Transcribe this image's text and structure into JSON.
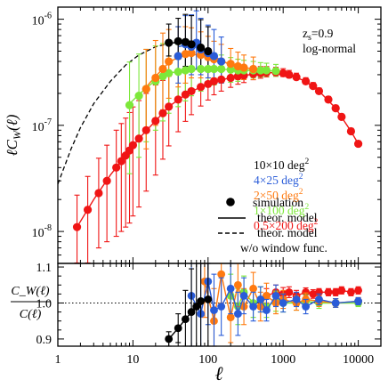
{
  "chart_data": {
    "type": "scatter",
    "x_scale": "log",
    "xlim": [
      1,
      20000
    ],
    "x_ticks": [
      1,
      10,
      100,
      1000,
      10000
    ],
    "x_tick_labels": [
      "1",
      "10",
      "100",
      "1000",
      "10000"
    ],
    "xlabel": "ℓ",
    "legend_placement": "lower-right",
    "annotation_lines": [
      "z",
      "s",
      "=0.9",
      "log-normal"
    ],
    "panels": [
      {
        "id": "top",
        "y_scale": "log",
        "ylim": [
          5e-09,
          1.3e-06
        ],
        "ylabel_parts": [
          "ℓ",
          "C",
          "W",
          "(ℓ)"
        ],
        "y_ticks": [
          {
            "value": 1e-08,
            "mantissa": "10",
            "exponent": "-8"
          },
          {
            "value": 1e-07,
            "mantissa": "10",
            "exponent": "-7"
          },
          {
            "value": 1e-06,
            "mantissa": "10",
            "exponent": "-6"
          }
        ],
        "series": [
          {
            "name": "10×10 deg",
            "name_sup": "2",
            "color": "#000000",
            "x": [
              30,
              40,
              50,
              60,
              80,
              100
            ],
            "y": [
              6e-07,
              6.2e-07,
              6.1e-07,
              5.8e-07,
              5.4e-07,
              5e-07
            ],
            "yerr_lo": [
              1.5e-07,
              2e-07,
              2.5e-07,
              2.3e-07,
              2e-07,
              1.8e-07
            ],
            "yerr_hi": [
              3e-07,
              4e-07,
              5e-07,
              5e-07,
              4.5e-07,
              3.5e-07
            ]
          },
          {
            "name": "4×25 deg",
            "name_sup": "2",
            "color": "#2a5cd8",
            "x": [
              40,
              50,
              60,
              70,
              80,
              100,
              120,
              150
            ],
            "y": [
              4.5e-07,
              5.8e-07,
              5.5e-07,
              6e-07,
              5.2e-07,
              4.8e-07,
              4.5e-07,
              4e-07
            ],
            "yerr_lo": [
              2e-07,
              2.5e-07,
              2.5e-07,
              2.6e-07,
              2.2e-07,
              2e-07,
              1.8e-07,
              1.5e-07
            ],
            "yerr_hi": [
              4e-07,
              5e-07,
              5.5e-07,
              6e-07,
              5e-07,
              4e-07,
              3.5e-07,
              2.8e-07
            ]
          },
          {
            "name": "2×50 deg",
            "name_sup": "2",
            "color": "#ff7a10",
            "x": [
              15,
              20,
              25,
              30,
              40,
              50,
              60,
              80,
              100,
              120,
              150,
              200,
              250,
              300,
              400
            ],
            "y": [
              2.2e-07,
              2.8e-07,
              3.4e-07,
              4e-07,
              4.5e-07,
              4.7e-07,
              4.8e-07,
              4.6e-07,
              4.4e-07,
              4.2e-07,
              4e-07,
              3.8e-07,
              3.6e-07,
              3.5e-07,
              3.4e-07
            ],
            "yerr_lo": [
              1.6e-07,
              1.8e-07,
              2e-07,
              2.2e-07,
              2.2e-07,
              2.2e-07,
              2e-07,
              1.8e-07,
              1.6e-07,
              1.4e-07,
              1.2e-07,
              1e-07,
              9e-08,
              8e-08,
              7e-08
            ],
            "yerr_hi": [
              3e-07,
              3.5e-07,
              4e-07,
              4e-07,
              4e-07,
              3.8e-07,
              3.5e-07,
              3e-07,
              2.5e-07,
              2e-07,
              1.8e-07,
              1.5e-07,
              1.3e-07,
              1.1e-07,
              1e-07
            ]
          },
          {
            "name": "1×100 deg",
            "name_sup": "2",
            "color": "#7de83a",
            "x": [
              9,
              12,
              15,
              20,
              25,
              30,
              40,
              50,
              60,
              80,
              100,
              120,
              150,
              200,
              250,
              300,
              400,
              500,
              600,
              800
            ],
            "y": [
              1.55e-07,
              1.9e-07,
              2.2e-07,
              2.6e-07,
              2.9e-07,
              3.1e-07,
              3.2e-07,
              3.3e-07,
              3.4e-07,
              3.4e-07,
              3.4e-07,
              3.4e-07,
              3.4e-07,
              3.35e-07,
              3.3e-07,
              3.3e-07,
              3.3e-07,
              3.3e-07,
              3.3e-07,
              3.25e-07
            ],
            "yerr_lo": [
              1.2e-07,
              1.4e-07,
              1.5e-07,
              1.7e-07,
              1.8e-07,
              1.8e-07,
              1.7e-07,
              1.6e-07,
              1.5e-07,
              1.3e-07,
              1.1e-07,
              1e-07,
              9e-08,
              8e-08,
              7e-08,
              6e-08,
              5e-08,
              4.5e-08,
              4e-08,
              3.5e-08
            ],
            "yerr_hi": [
              2.4e-07,
              2.8e-07,
              3e-07,
              3e-07,
              3e-07,
              2.8e-07,
              2.6e-07,
              2.4e-07,
              2.2e-07,
              1.9e-07,
              1.6e-07,
              1.4e-07,
              1.2e-07,
              1e-07,
              9e-08,
              8e-08,
              7e-08,
              6e-08,
              5.5e-08,
              5e-08
            ]
          },
          {
            "name": "0.5×200 deg",
            "name_sup": "2",
            "color": "#f01515",
            "x": [
              1.8,
              2.5,
              3.5,
              4.5,
              6,
              7,
              8,
              9,
              10,
              12,
              15,
              20,
              25,
              30,
              40,
              50,
              60,
              80,
              100,
              120,
              150,
              200,
              250,
              300,
              400,
              500,
              600,
              800,
              1000,
              1200,
              1500,
              2000,
              2500,
              3000,
              4000,
              5000,
              6000,
              8000,
              10000
            ],
            "y": [
              1.1e-08,
              1.6e-08,
              2.3e-08,
              3e-08,
              4e-08,
              4.6e-08,
              5.2e-08,
              5.8e-08,
              6.5e-08,
              7.5e-08,
              9e-08,
              1.1e-07,
              1.3e-07,
              1.5e-07,
              1.75e-07,
              1.95e-07,
              2.1e-07,
              2.3e-07,
              2.45e-07,
              2.6e-07,
              2.7e-07,
              2.8e-07,
              2.9e-07,
              2.95e-07,
              3.05e-07,
              3.1e-07,
              3.15e-07,
              3.15e-07,
              3.1e-07,
              3e-07,
              2.85e-07,
              2.6e-07,
              2.35e-07,
              2.1e-07,
              1.75e-07,
              1.45e-07,
              1.2e-07,
              8.8e-08,
              6.7e-08
            ],
            "yerr_lo": [
              7e-09,
              1.1e-08,
              1.6e-08,
              2.2e-08,
              3.1e-08,
              3.6e-08,
              4.1e-08,
              4.6e-08,
              5.1e-08,
              5.8e-08,
              6.6e-08,
              7.6e-08,
              8.2e-08,
              8.6e-08,
              8.8e-08,
              8.6e-08,
              8.4e-08,
              7.8e-08,
              7.2e-08,
              6.6e-08,
              6e-08,
              5.2e-08,
              4.6e-08,
              4.2e-08,
              3.6e-08,
              3.2e-08,
              2.9e-08,
              2.5e-08,
              2.2e-08,
              2e-08,
              1.7e-08,
              1.4e-08,
              1.2e-08,
              1e-08,
              8e-09,
              6.5e-09,
              5.2e-09,
              3.8e-09,
              2.8e-09
            ],
            "yerr_hi": [
              1.1e-08,
              1.7e-08,
              2.6e-08,
              3.5e-08,
              5e-08,
              5.8e-08,
              6.5e-08,
              7.4e-08,
              8.4e-08,
              9.6e-08,
              1.1e-07,
              1.3e-07,
              1.35e-07,
              1.4e-07,
              1.4e-07,
              1.35e-07,
              1.3e-07,
              1.2e-07,
              1.1e-07,
              1e-07,
              9e-08,
              8e-08,
              7e-08,
              6.3e-08,
              5.5e-08,
              4.8e-08,
              4.3e-08,
              3.7e-08,
              3.2e-08,
              2.9e-08,
              2.5e-08,
              2.1e-08,
              1.8e-08,
              1.5e-08,
              1.2e-08,
              9.5e-09,
              7.8e-09,
              5.6e-09,
              4.2e-09
            ]
          }
        ],
        "model_solid": [
          {
            "color": "#000000",
            "x": [
              30,
              40,
              50,
              60,
              80,
              100,
              120
            ],
            "y": [
              5.9e-07,
              6.1e-07,
              6e-07,
              5.7e-07,
              5.3e-07,
              4.9e-07,
              4.6e-07
            ]
          },
          {
            "color": "#2a5cd8",
            "x": [
              40,
              50,
              60,
              80,
              100,
              150,
              200,
              300
            ],
            "y": [
              5.5e-07,
              5.7e-07,
              5.6e-07,
              5.2e-07,
              4.8e-07,
              4.1e-07,
              3.7e-07,
              3.4e-07
            ]
          },
          {
            "color": "#ff7a10",
            "x": [
              15,
              20,
              30,
              40,
              60,
              100,
              150,
              200,
              300,
              400,
              600
            ],
            "y": [
              2.3e-07,
              2.9e-07,
              3.9e-07,
              4.4e-07,
              4.7e-07,
              4.4e-07,
              4e-07,
              3.8e-07,
              3.5e-07,
              3.4e-07,
              3.3e-07
            ]
          },
          {
            "color": "#7de83a",
            "x": [
              9,
              12,
              15,
              20,
              30,
              50,
              80,
              120,
              200,
              300,
              500,
              800,
              1000
            ],
            "y": [
              1.6e-07,
              1.95e-07,
              2.25e-07,
              2.65e-07,
              3.1e-07,
              3.3e-07,
              3.4e-07,
              3.4e-07,
              3.35e-07,
              3.3e-07,
              3.3e-07,
              3.25e-07,
              3.2e-07
            ]
          },
          {
            "color": "#f01515",
            "x": [
              1.8,
              3,
              5,
              8,
              12,
              20,
              30,
              50,
              80,
              120,
              200,
              300,
              500,
              800,
              1200,
              2000,
              3000,
              5000,
              8000,
              10000
            ],
            "y": [
              1.1e-08,
              2e-08,
              3.4e-08,
              5.2e-08,
              7.5e-08,
              1.1e-07,
              1.5e-07,
              1.95e-07,
              2.3e-07,
              2.6e-07,
              2.8e-07,
              2.95e-07,
              3.1e-07,
              3.15e-07,
              3e-07,
              2.6e-07,
              2.1e-07,
              1.45e-07,
              8.8e-08,
              6.7e-08
            ]
          }
        ],
        "model_dashed": {
          "color": "#000000",
          "x": [
            1,
            1.5,
            2,
            3,
            5,
            8,
            12,
            20,
            30,
            45,
            60,
            80
          ],
          "y": [
            2.8e-08,
            6e-08,
            9.5e-08,
            1.6e-07,
            2.6e-07,
            3.7e-07,
            4.6e-07,
            5.5e-07,
            5.9e-07,
            6.1e-07,
            6.1e-07,
            6e-07
          ]
        },
        "legend": [
          {
            "label": "simulation",
            "style": "dot"
          },
          {
            "label": "theor. model",
            "style": "solid"
          },
          {
            "label": "theor. model",
            "style": "dashed"
          },
          {
            "label": "w/o window func.",
            "style": "none"
          }
        ]
      },
      {
        "id": "bottom",
        "y_scale": "linear",
        "ylim": [
          0.88,
          1.11
        ],
        "ylabel_numerator": "C_W(ℓ)",
        "ylabel_denominator": "C(ℓ)",
        "y_ticks": [
          {
            "value": 0.9,
            "label": "0.9"
          },
          {
            "value": 1.0,
            "label": "1.0"
          },
          {
            "value": 1.1,
            "label": "1.1"
          }
        ],
        "reference_line": 1.0,
        "series": [
          {
            "color": "#000000",
            "x": [
              30,
              40,
              50,
              60,
              70,
              80,
              100
            ],
            "y": [
              0.9,
              0.93,
              0.955,
              0.975,
              0.99,
              1.005,
              1.01
            ],
            "yerr": [
              0.02,
              0.04,
              0.08,
              0.12,
              0.15,
              0.15,
              0.15
            ]
          },
          {
            "color": "#2a5cd8",
            "x": [
              60,
              80,
              100,
              120,
              150,
              200,
              250,
              300,
              400,
              500,
              600,
              800,
              1000,
              1500,
              2000,
              3000,
              5000,
              10000
            ],
            "y": [
              1.02,
              0.97,
              1.06,
              0.98,
              0.99,
              1.04,
              0.97,
              1.02,
              0.99,
              1.01,
              0.98,
              1.02,
              1.0,
              1.01,
              0.99,
              1.01,
              1.0,
              1.005
            ],
            "yerr": [
              0.15,
              0.15,
              0.12,
              0.1,
              0.08,
              0.07,
              0.06,
              0.05,
              0.04,
              0.035,
              0.03,
              0.03,
              0.025,
              0.02,
              0.02,
              0.015,
              0.012,
              0.01
            ]
          },
          {
            "color": "#ff7a10",
            "x": [
              90,
              120,
              150,
              200,
              250,
              300,
              400,
              500,
              600,
              800,
              1000,
              1500,
              2000,
              3000,
              5000,
              10000
            ],
            "y": [
              1.06,
              0.95,
              1.08,
              0.96,
              1.05,
              0.99,
              1.04,
              0.99,
              1.02,
              1.0,
              1.01,
              1.0,
              1.01,
              1.005,
              1.0,
              1.005
            ],
            "yerr": [
              0.1,
              0.09,
              0.08,
              0.07,
              0.06,
              0.05,
              0.045,
              0.04,
              0.035,
              0.03,
              0.025,
              0.02,
              0.018,
              0.015,
              0.012,
              0.01
            ]
          },
          {
            "color": "#7de83a",
            "x": [
              200,
              250,
              300,
              400,
              500,
              600,
              800,
              1000,
              1500,
              2000,
              3000,
              5000,
              10000
            ],
            "y": [
              1.02,
              0.99,
              1.03,
              1.0,
              1.01,
              0.99,
              1.005,
              1.0,
              1.0,
              1.005,
              1.0,
              1.0,
              1.0
            ],
            "yerr": [
              0.06,
              0.05,
              0.045,
              0.04,
              0.035,
              0.03,
              0.028,
              0.025,
              0.02,
              0.018,
              0.015,
              0.012,
              0.01
            ]
          },
          {
            "color": "#f01515",
            "x": [
              600,
              800,
              1000,
              1200,
              1500,
              2000,
              2500,
              3000,
              4000,
              5000,
              6000,
              8000,
              10000
            ],
            "y": [
              1.02,
              1.03,
              1.025,
              1.03,
              1.02,
              1.03,
              1.025,
              1.03,
              1.03,
              1.03,
              1.035,
              1.03,
              1.035
            ],
            "yerr": [
              0.02,
              0.02,
              0.018,
              0.015,
              0.015,
              0.012,
              0.012,
              0.01,
              0.01,
              0.01,
              0.01,
              0.01,
              0.01
            ]
          }
        ]
      }
    ]
  }
}
